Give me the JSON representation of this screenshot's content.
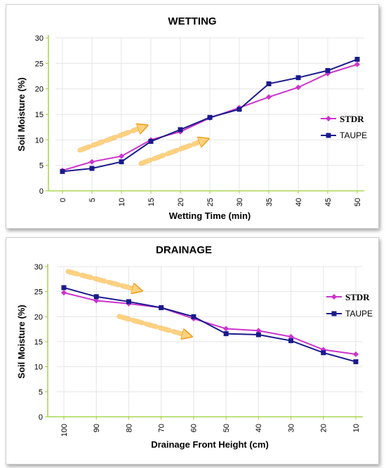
{
  "colors": {
    "stdr": "#cc33cc",
    "taupe": "#1a1a8c",
    "axis": "#9acd32",
    "arrow_fill": "#ffd27f",
    "arrow_stroke": "#f0a020"
  },
  "chart_data": [
    {
      "type": "line",
      "title": "WETTING",
      "xlabel": "Wetting Time (min)",
      "ylabel": "Soil Moisture (%)",
      "ylim": [
        0,
        30
      ],
      "yticks": [
        "0",
        "5",
        "10",
        "15",
        "20",
        "25",
        "30"
      ],
      "categories": [
        "0",
        "5",
        "10",
        "15",
        "20",
        "25",
        "30",
        "35",
        "40",
        "45",
        "50"
      ],
      "grid": true,
      "legend": "right",
      "series": [
        {
          "name": "STDR",
          "values": [
            4.0,
            5.7,
            6.8,
            10.0,
            11.6,
            14.3,
            16.3,
            18.4,
            20.3,
            23.0,
            24.8
          ]
        },
        {
          "name": "TAUPE",
          "values": [
            3.8,
            4.4,
            5.7,
            9.7,
            12.0,
            14.4,
            16.0,
            21.0,
            22.2,
            23.6,
            25.8
          ]
        }
      ]
    },
    {
      "type": "line",
      "title": "DRAINAGE",
      "xlabel": "Drainage Front Height (cm)",
      "ylabel": "Soil Moisture (%)",
      "ylim": [
        0,
        30
      ],
      "yticks": [
        "0",
        "5",
        "10",
        "15",
        "20",
        "25",
        "30"
      ],
      "categories": [
        "100",
        "90",
        "80",
        "70",
        "60",
        "50",
        "40",
        "30",
        "20",
        "10"
      ],
      "grid": true,
      "legend": "right",
      "series": [
        {
          "name": "STDR",
          "values": [
            24.8,
            23.2,
            22.6,
            21.8,
            19.6,
            17.6,
            17.2,
            16.0,
            13.4,
            12.5
          ]
        },
        {
          "name": "TAUPE",
          "values": [
            25.8,
            24.0,
            23.0,
            21.8,
            20.0,
            16.6,
            16.4,
            15.2,
            12.8,
            11.0
          ]
        }
      ]
    }
  ]
}
